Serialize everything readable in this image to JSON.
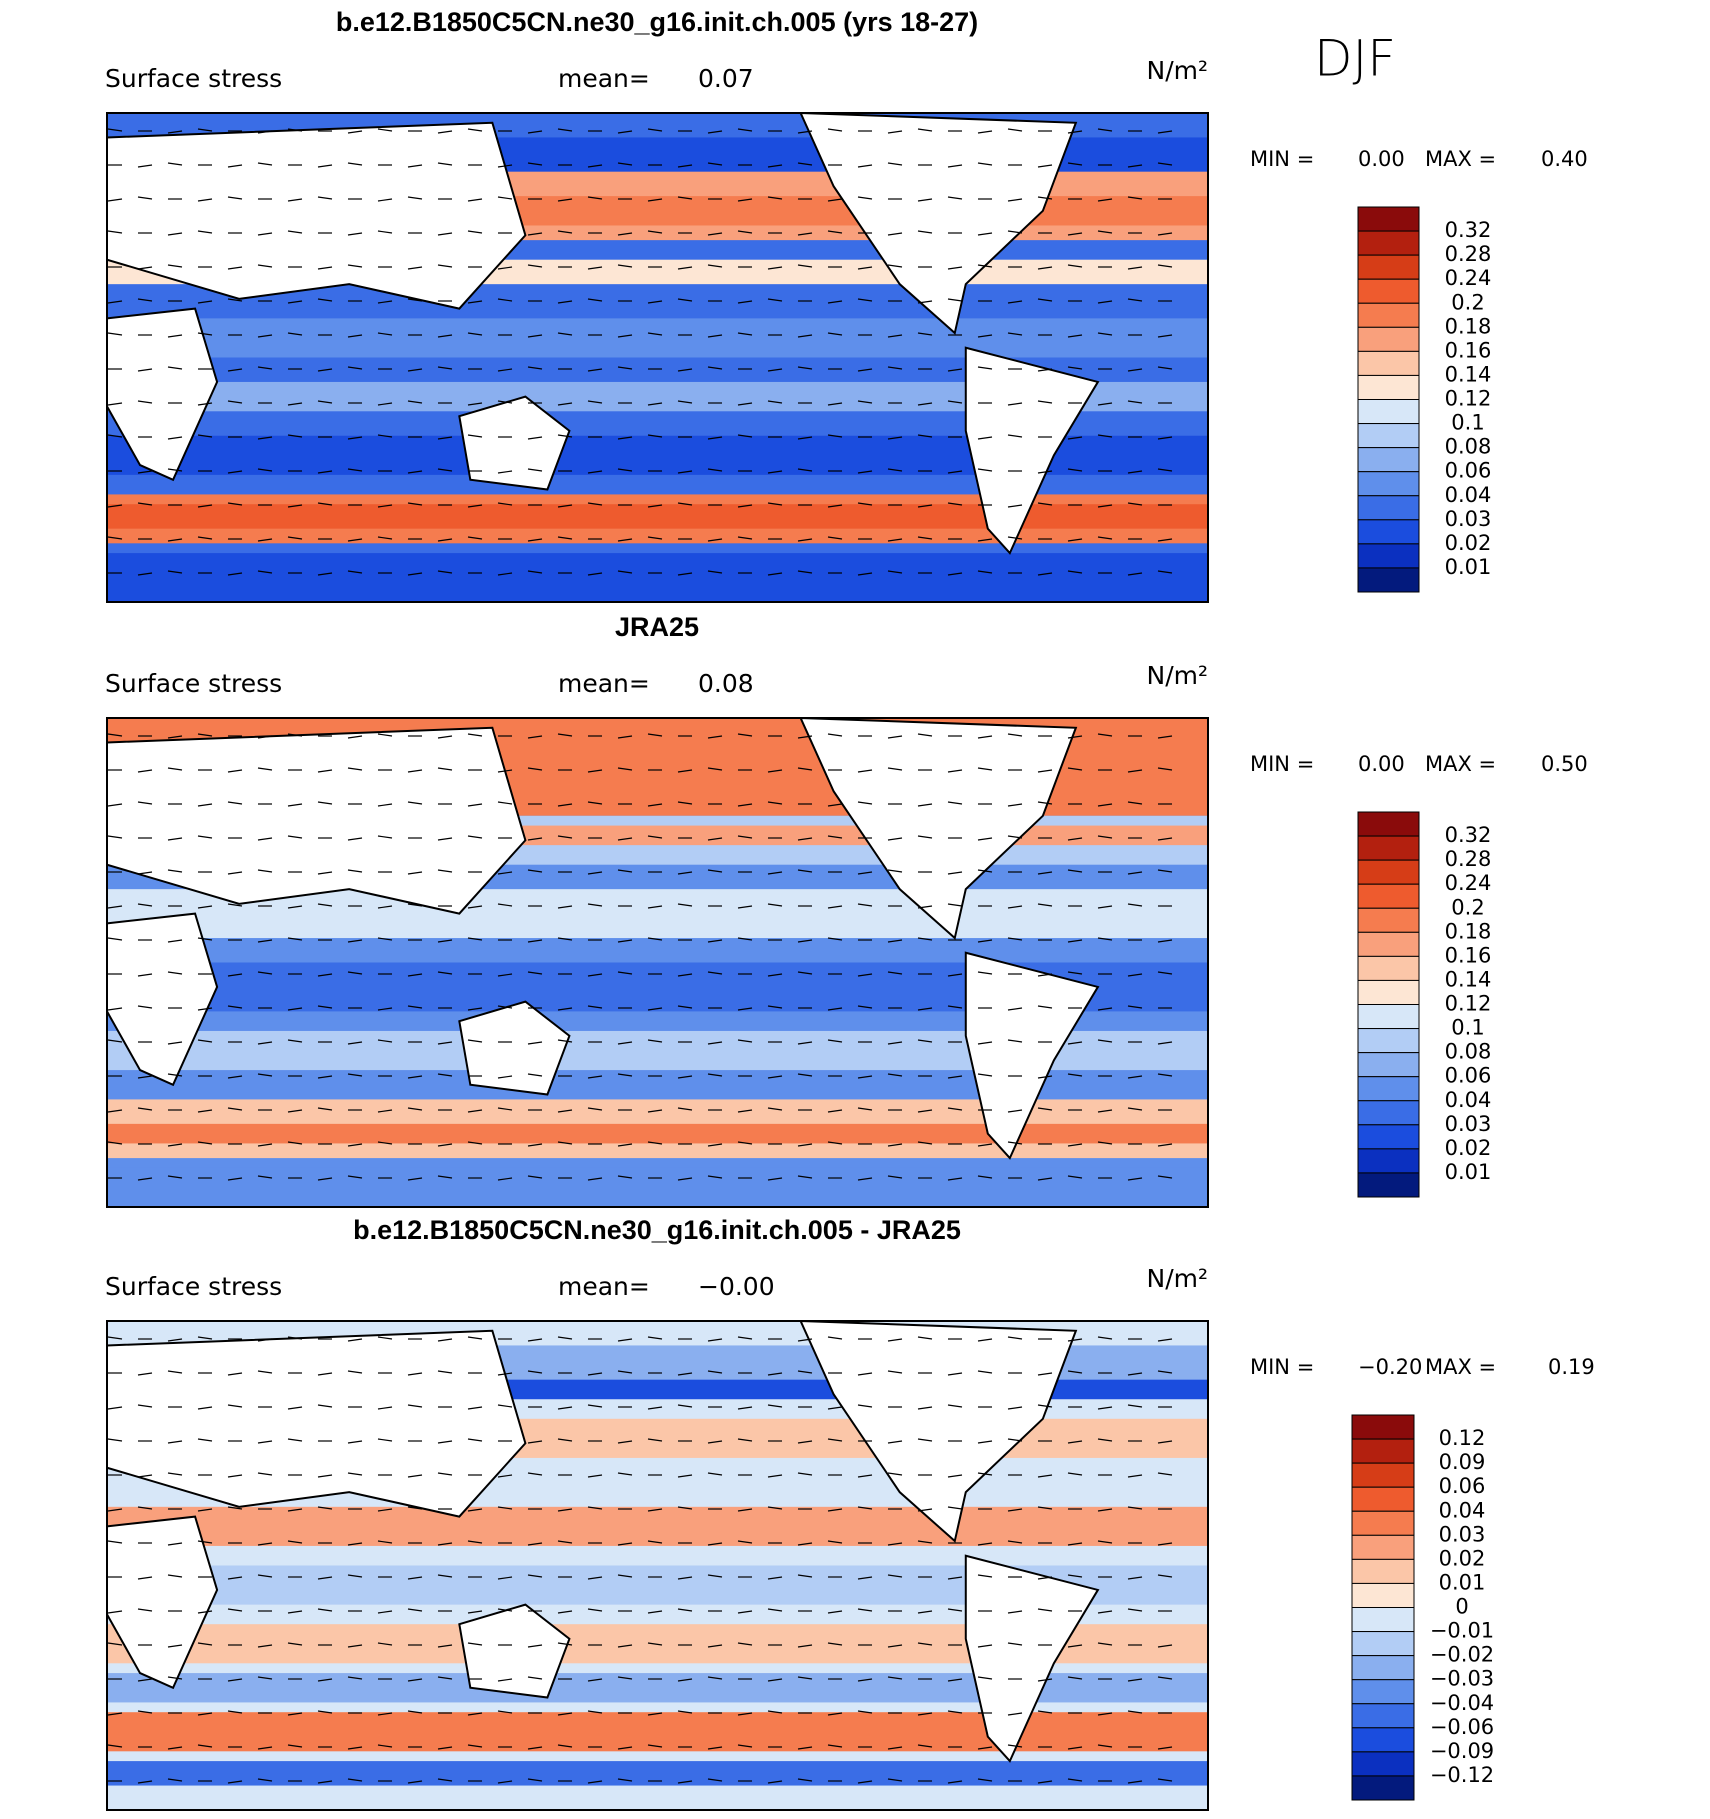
{
  "season": "DJF",
  "panels": [
    {
      "title": "b.e12.B1850C5CN.ne30_g16.init.ch.005 (yrs 18-27)",
      "label": "Surface stress",
      "mean_label": "mean=",
      "mean": "0.07",
      "units": "N/m²",
      "min_label": "MIN =",
      "min": "0.00",
      "max_label": "MAX =",
      "max": "0.40",
      "colorbar": {
        "labels": [
          "0.32",
          "0.28",
          "0.24",
          "0.2",
          "0.18",
          "0.16",
          "0.14",
          "0.12",
          "0.1",
          "0.08",
          "0.06",
          "0.04",
          "0.03",
          "0.02",
          "0.01"
        ],
        "colors": [
          "#8a0b0b",
          "#b3200f",
          "#d63d17",
          "#ee5b2e",
          "#f57c4f",
          "#f9a07c",
          "#fbc6a8",
          "#fde6d4",
          "#d7e7f8",
          "#b2cdf5",
          "#8aafef",
          "#5f8feb",
          "#3a6de6",
          "#1b4dde",
          "#0b30c0",
          "#031a7d"
        ]
      }
    },
    {
      "title": "JRA25",
      "label": "Surface stress",
      "mean_label": "mean=",
      "mean": "0.08",
      "units": "N/m²",
      "min_label": "MIN =",
      "min": "0.00",
      "max_label": "MAX =",
      "max": "0.50",
      "colorbar": {
        "labels": [
          "0.32",
          "0.28",
          "0.24",
          "0.2",
          "0.18",
          "0.16",
          "0.14",
          "0.12",
          "0.1",
          "0.08",
          "0.06",
          "0.04",
          "0.03",
          "0.02",
          "0.01"
        ],
        "colors": [
          "#8a0b0b",
          "#b3200f",
          "#d63d17",
          "#ee5b2e",
          "#f57c4f",
          "#f9a07c",
          "#fbc6a8",
          "#fde6d4",
          "#d7e7f8",
          "#b2cdf5",
          "#8aafef",
          "#5f8feb",
          "#3a6de6",
          "#1b4dde",
          "#0b30c0",
          "#031a7d"
        ]
      }
    },
    {
      "title": "b.e12.B1850C5CN.ne30_g16.init.ch.005 - JRA25",
      "label": "Surface stress",
      "mean_label": "mean=",
      "mean": "−0.00",
      "units": "N/m²",
      "min_label": "MIN =",
      "min": "−0.20",
      "max_label": "MAX =",
      "max": "0.19",
      "colorbar": {
        "labels": [
          "0.12",
          "0.09",
          "0.06",
          "0.04",
          "0.03",
          "0.02",
          "0.01",
          "0",
          "−0.01",
          "−0.02",
          "−0.03",
          "−0.04",
          "−0.06",
          "−0.09",
          "−0.12"
        ],
        "colors": [
          "#8a0b0b",
          "#b3200f",
          "#d63d17",
          "#ee5b2e",
          "#f57c4f",
          "#f9a07c",
          "#fbc6a8",
          "#fde6d4",
          "#d7e7f8",
          "#b2cdf5",
          "#8aafef",
          "#5f8feb",
          "#3a6de6",
          "#1b4dde",
          "#0b30c0",
          "#031a7d"
        ]
      }
    }
  ]
}
